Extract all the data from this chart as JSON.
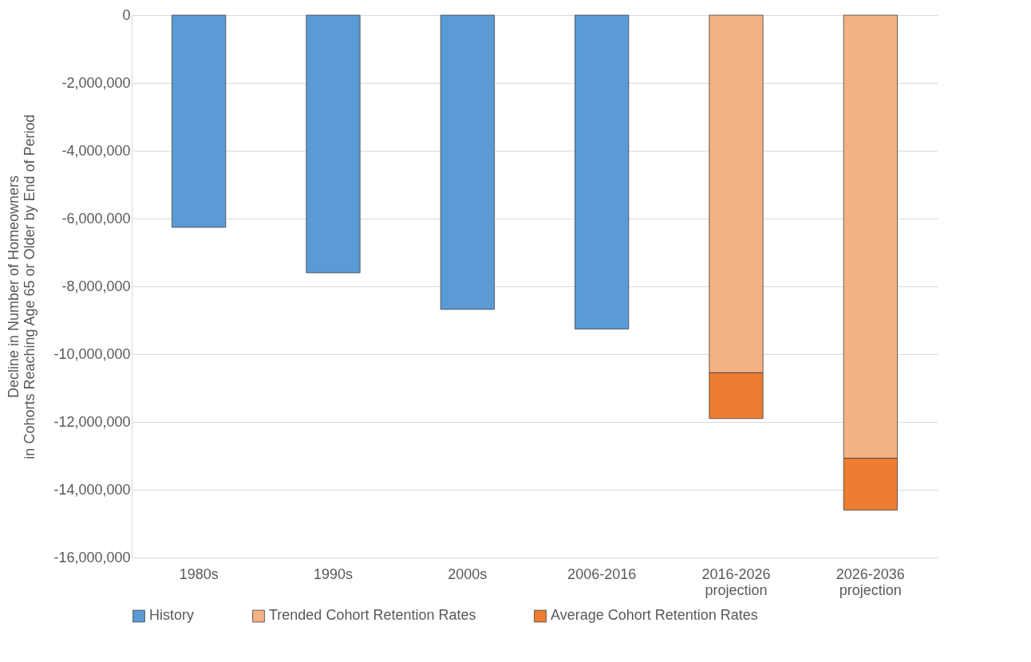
{
  "chart_data": {
    "type": "bar",
    "stacked": true,
    "ylabel": "Decline in Number of Homeowners\nin Cohorts Reaching Age 65 or Older by End of Period",
    "categories": [
      "1980s",
      "1990s",
      "2000s",
      "2006-2016",
      "2016-2026 projection",
      "2026-2036 projection"
    ],
    "series": [
      {
        "name": "History",
        "color": "#5b9bd5",
        "values": [
          -6260000,
          -7600000,
          -8680000,
          -9260000,
          null,
          null
        ]
      },
      {
        "name": "Trended Cohort Retention Rates",
        "color": "#f4b183",
        "values": [
          null,
          null,
          null,
          null,
          -10550000,
          -13070000
        ]
      },
      {
        "name": "Average Cohort Retention Rates",
        "color": "#ed7d31",
        "values": [
          null,
          null,
          null,
          null,
          -1350000,
          -1530000
        ]
      }
    ],
    "ylim": [
      -16000000,
      0
    ],
    "yticks": [
      {
        "value": -16000000,
        "label": "-16,000,000"
      },
      {
        "value": -14000000,
        "label": "-14,000,000"
      },
      {
        "value": -12000000,
        "label": "-12,000,000"
      },
      {
        "value": -10000000,
        "label": "-10,000,000"
      },
      {
        "value": -8000000,
        "label": "-8,000,000"
      },
      {
        "value": -6000000,
        "label": "-6,000,000"
      },
      {
        "value": -4000000,
        "label": "-4,000,000"
      },
      {
        "value": -2000000,
        "label": "-2,000,000"
      },
      0
    ],
    "grid": "y",
    "legend": "bottom"
  }
}
